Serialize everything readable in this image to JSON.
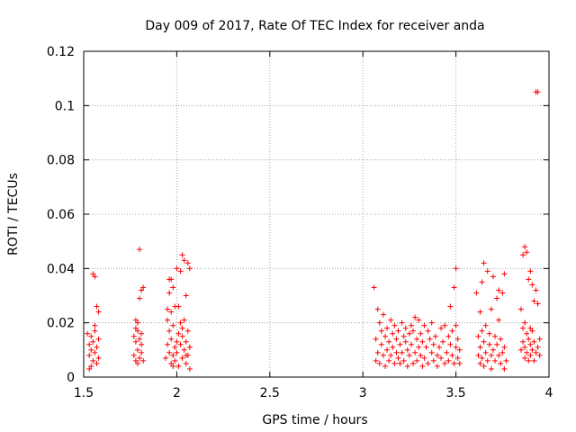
{
  "chart_data": {
    "type": "scatter",
    "title": "Day 009 of 2017, Rate Of TEC Index for receiver anda",
    "xlabel": "GPS time / hours",
    "ylabel": "ROTI / TECUs",
    "xlim": [
      1.5,
      4.0
    ],
    "ylim": [
      0,
      0.12
    ],
    "x_ticks": [
      1.5,
      2.0,
      2.5,
      3.0,
      3.5,
      4.0
    ],
    "x_tick_labels": [
      "1.5",
      "2",
      "2.5",
      "3",
      "3.5",
      "4"
    ],
    "y_ticks": [
      0,
      0.02,
      0.04,
      0.06,
      0.08,
      0.1,
      0.12
    ],
    "y_tick_labels": [
      "0",
      "0.02",
      "0.04",
      "0.06",
      "0.08",
      "0.1",
      "0.12"
    ],
    "grid": true,
    "marker": "+",
    "color": "#ff0000",
    "series": [
      {
        "name": "ROTI",
        "points": [
          [
            1.52,
            0.016
          ],
          [
            1.53,
            0.012
          ],
          [
            1.53,
            0.008
          ],
          [
            1.54,
            0.015
          ],
          [
            1.54,
            0.01
          ],
          [
            1.55,
            0.006
          ],
          [
            1.55,
            0.013
          ],
          [
            1.56,
            0.009
          ],
          [
            1.56,
            0.017
          ],
          [
            1.57,
            0.005
          ],
          [
            1.57,
            0.011
          ],
          [
            1.58,
            0.014
          ],
          [
            1.58,
            0.007
          ],
          [
            1.55,
            0.038
          ],
          [
            1.56,
            0.037
          ],
          [
            1.57,
            0.026
          ],
          [
            1.58,
            0.024
          ],
          [
            1.54,
            0.004
          ],
          [
            1.56,
            0.019
          ],
          [
            1.53,
            0.003
          ],
          [
            1.77,
            0.015
          ],
          [
            1.77,
            0.008
          ],
          [
            1.78,
            0.013
          ],
          [
            1.78,
            0.006
          ],
          [
            1.78,
            0.021
          ],
          [
            1.79,
            0.017
          ],
          [
            1.79,
            0.01
          ],
          [
            1.79,
            0.005
          ],
          [
            1.8,
            0.014
          ],
          [
            1.8,
            0.007
          ],
          [
            1.8,
            0.029
          ],
          [
            1.81,
            0.032
          ],
          [
            1.81,
            0.016
          ],
          [
            1.81,
            0.009
          ],
          [
            1.82,
            0.033
          ],
          [
            1.8,
            0.047
          ],
          [
            1.79,
            0.02
          ],
          [
            1.82,
            0.006
          ],
          [
            1.78,
            0.018
          ],
          [
            1.81,
            0.012
          ],
          [
            1.94,
            0.007
          ],
          [
            1.95,
            0.012
          ],
          [
            1.95,
            0.021
          ],
          [
            1.95,
            0.025
          ],
          [
            1.96,
            0.009
          ],
          [
            1.96,
            0.017
          ],
          [
            1.96,
            0.031
          ],
          [
            1.97,
            0.005
          ],
          [
            1.97,
            0.014
          ],
          [
            1.97,
            0.024
          ],
          [
            1.97,
            0.036
          ],
          [
            1.98,
            0.008
          ],
          [
            1.98,
            0.019
          ],
          [
            1.98,
            0.033
          ],
          [
            1.99,
            0.011
          ],
          [
            1.99,
            0.006
          ],
          [
            1.99,
            0.026
          ],
          [
            2.0,
            0.013
          ],
          [
            2.0,
            0.04
          ],
          [
            2.0,
            0.009
          ],
          [
            2.01,
            0.016
          ],
          [
            2.01,
            0.004
          ],
          [
            2.02,
            0.012
          ],
          [
            2.02,
            0.02
          ],
          [
            2.02,
            0.039
          ],
          [
            2.03,
            0.007
          ],
          [
            2.03,
            0.015
          ],
          [
            2.03,
            0.045
          ],
          [
            2.04,
            0.01
          ],
          [
            2.04,
            0.021
          ],
          [
            2.04,
            0.043
          ],
          [
            2.05,
            0.005
          ],
          [
            2.05,
            0.013
          ],
          [
            2.05,
            0.03
          ],
          [
            2.06,
            0.008
          ],
          [
            2.06,
            0.017
          ],
          [
            2.06,
            0.042
          ],
          [
            2.07,
            0.003
          ],
          [
            2.07,
            0.011
          ],
          [
            2.07,
            0.04
          ],
          [
            1.96,
            0.036
          ],
          [
            1.98,
            0.004
          ],
          [
            2.01,
            0.026
          ],
          [
            2.03,
            0.018
          ],
          [
            2.05,
            0.008
          ],
          [
            3.06,
            0.033
          ],
          [
            3.07,
            0.006
          ],
          [
            3.07,
            0.014
          ],
          [
            3.08,
            0.025
          ],
          [
            3.08,
            0.009
          ],
          [
            3.09,
            0.02
          ],
          [
            3.09,
            0.005
          ],
          [
            3.1,
            0.012
          ],
          [
            3.1,
            0.017
          ],
          [
            3.11,
            0.008
          ],
          [
            3.11,
            0.023
          ],
          [
            3.12,
            0.015
          ],
          [
            3.12,
            0.004
          ],
          [
            3.13,
            0.01
          ],
          [
            3.13,
            0.018
          ],
          [
            3.14,
            0.006
          ],
          [
            3.14,
            0.013
          ],
          [
            3.15,
            0.021
          ],
          [
            3.15,
            0.008
          ],
          [
            3.16,
            0.016
          ],
          [
            3.16,
            0.011
          ],
          [
            3.17,
            0.005
          ],
          [
            3.17,
            0.019
          ],
          [
            3.18,
            0.009
          ],
          [
            3.18,
            0.014
          ],
          [
            3.19,
            0.007
          ],
          [
            3.19,
            0.017
          ],
          [
            3.2,
            0.012
          ],
          [
            3.2,
            0.005
          ],
          [
            3.21,
            0.02
          ],
          [
            3.21,
            0.009
          ],
          [
            3.22,
            0.015
          ],
          [
            3.22,
            0.006
          ],
          [
            3.23,
            0.013
          ],
          [
            3.23,
            0.018
          ],
          [
            3.24,
            0.004
          ],
          [
            3.24,
            0.01
          ],
          [
            3.25,
            0.016
          ],
          [
            3.25,
            0.008
          ],
          [
            3.26,
            0.019
          ],
          [
            3.26,
            0.012
          ],
          [
            3.27,
            0.005
          ],
          [
            3.27,
            0.017
          ],
          [
            3.28,
            0.009
          ],
          [
            3.28,
            0.022
          ],
          [
            3.29,
            0.014
          ],
          [
            3.29,
            0.006
          ],
          [
            3.3,
            0.011
          ],
          [
            3.3,
            0.021
          ],
          [
            3.31,
            0.008
          ],
          [
            3.31,
            0.016
          ],
          [
            3.32,
            0.004
          ],
          [
            3.32,
            0.013
          ],
          [
            3.33,
            0.019
          ],
          [
            3.33,
            0.007
          ],
          [
            3.34,
            0.011
          ],
          [
            3.35,
            0.017
          ],
          [
            3.35,
            0.005
          ],
          [
            3.36,
            0.014
          ],
          [
            3.37,
            0.009
          ],
          [
            3.37,
            0.02
          ],
          [
            3.38,
            0.006
          ],
          [
            3.38,
            0.012
          ],
          [
            3.39,
            0.015
          ],
          [
            3.4,
            0.008
          ],
          [
            3.4,
            0.004
          ],
          [
            3.41,
            0.011
          ],
          [
            3.42,
            0.018
          ],
          [
            3.42,
            0.007
          ],
          [
            3.43,
            0.013
          ],
          [
            3.44,
            0.005
          ],
          [
            3.44,
            0.019
          ],
          [
            3.45,
            0.009
          ],
          [
            3.46,
            0.015
          ],
          [
            3.46,
            0.006
          ],
          [
            3.47,
            0.012
          ],
          [
            3.47,
            0.026
          ],
          [
            3.48,
            0.008
          ],
          [
            3.48,
            0.017
          ],
          [
            3.49,
            0.033
          ],
          [
            3.49,
            0.005
          ],
          [
            3.5,
            0.011
          ],
          [
            3.5,
            0.019
          ],
          [
            3.5,
            0.04
          ],
          [
            3.51,
            0.007
          ],
          [
            3.51,
            0.014
          ],
          [
            3.52,
            0.01
          ],
          [
            3.52,
            0.005
          ],
          [
            3.61,
            0.031
          ],
          [
            3.62,
            0.008
          ],
          [
            3.62,
            0.015
          ],
          [
            3.63,
            0.005
          ],
          [
            3.63,
            0.011
          ],
          [
            3.63,
            0.024
          ],
          [
            3.64,
            0.017
          ],
          [
            3.64,
            0.007
          ],
          [
            3.65,
            0.042
          ],
          [
            3.65,
            0.013
          ],
          [
            3.65,
            0.004
          ],
          [
            3.66,
            0.009
          ],
          [
            3.66,
            0.019
          ],
          [
            3.67,
            0.006
          ],
          [
            3.67,
            0.039
          ],
          [
            3.68,
            0.012
          ],
          [
            3.68,
            0.016
          ],
          [
            3.69,
            0.008
          ],
          [
            3.69,
            0.003
          ],
          [
            3.7,
            0.01
          ],
          [
            3.7,
            0.037
          ],
          [
            3.71,
            0.015
          ],
          [
            3.71,
            0.006
          ],
          [
            3.72,
            0.012
          ],
          [
            3.72,
            0.029
          ],
          [
            3.73,
            0.008
          ],
          [
            3.73,
            0.032
          ],
          [
            3.74,
            0.005
          ],
          [
            3.74,
            0.014
          ],
          [
            3.75,
            0.009
          ],
          [
            3.75,
            0.031
          ],
          [
            3.76,
            0.003
          ],
          [
            3.76,
            0.011
          ],
          [
            3.76,
            0.038
          ],
          [
            3.77,
            0.006
          ],
          [
            3.64,
            0.035
          ],
          [
            3.69,
            0.025
          ],
          [
            3.73,
            0.021
          ],
          [
            3.85,
            0.025
          ],
          [
            3.85,
            0.01
          ],
          [
            3.86,
            0.018
          ],
          [
            3.86,
            0.013
          ],
          [
            3.86,
            0.045
          ],
          [
            3.87,
            0.007
          ],
          [
            3.87,
            0.048
          ],
          [
            3.87,
            0.011
          ],
          [
            3.88,
            0.016
          ],
          [
            3.88,
            0.046
          ],
          [
            3.88,
            0.009
          ],
          [
            3.89,
            0.014
          ],
          [
            3.89,
            0.006
          ],
          [
            3.89,
            0.036
          ],
          [
            3.9,
            0.012
          ],
          [
            3.9,
            0.008
          ],
          [
            3.9,
            0.039
          ],
          [
            3.91,
            0.01
          ],
          [
            3.91,
            0.017
          ],
          [
            3.91,
            0.034
          ],
          [
            3.92,
            0.006
          ],
          [
            3.92,
            0.013
          ],
          [
            3.92,
            0.028
          ],
          [
            3.93,
            0.009
          ],
          [
            3.93,
            0.032
          ],
          [
            3.93,
            0.105
          ],
          [
            3.94,
            0.011
          ],
          [
            3.94,
            0.027
          ],
          [
            3.94,
            0.105
          ],
          [
            3.95,
            0.008
          ],
          [
            3.95,
            0.014
          ],
          [
            3.87,
            0.02
          ],
          [
            3.9,
            0.018
          ]
        ]
      }
    ]
  }
}
